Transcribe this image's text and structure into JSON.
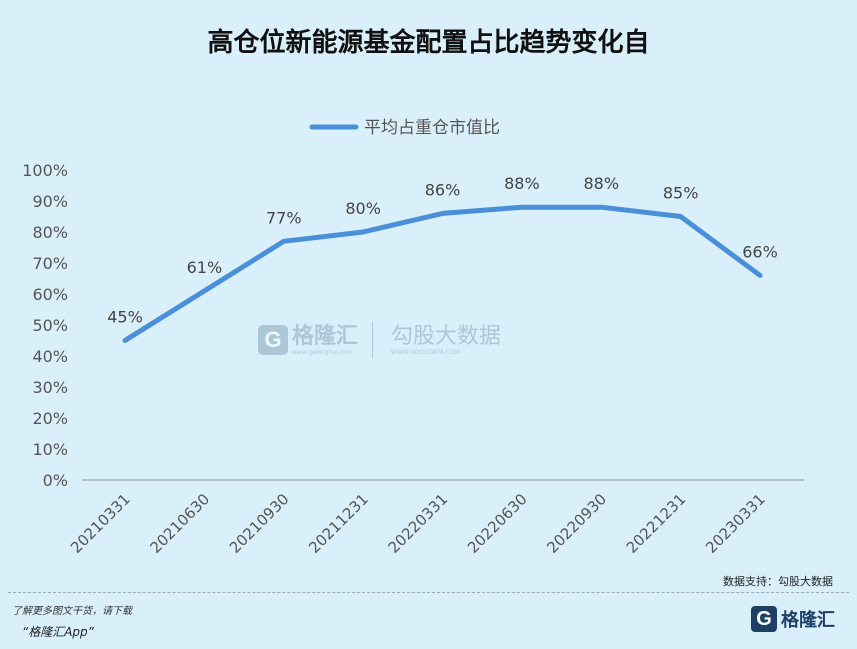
{
  "chart_data": {
    "type": "line",
    "title": "高仓位新能源基金配置占比趋势变化自",
    "categories": [
      "20210331",
      "20210630",
      "20210930",
      "20211231",
      "20220331",
      "20220630",
      "20220930",
      "20221231",
      "20230331"
    ],
    "series": [
      {
        "name": "平均占重仓市值比",
        "values": [
          45,
          61,
          77,
          80,
          86,
          88,
          88,
          85,
          66
        ],
        "color": "#4a90d9"
      }
    ],
    "data_labels": [
      "45%",
      "61%",
      "77%",
      "80%",
      "86%",
      "88%",
      "88%",
      "85%",
      "66%"
    ],
    "y_ticks": [
      "0%",
      "10%",
      "20%",
      "30%",
      "40%",
      "50%",
      "60%",
      "70%",
      "80%",
      "90%",
      "100%"
    ],
    "ylim": [
      0,
      100
    ],
    "xlabel": "",
    "ylabel": "",
    "grid": false,
    "legend_position": "top-center"
  },
  "source_note": "数据支持：勾股大数据",
  "footer": {
    "promo_line1": "了解更多图文干货，请下载",
    "promo_line2": "“格隆汇App”",
    "logo_letter": "G",
    "logo_text": "格隆汇"
  },
  "watermark": {
    "letter": "G",
    "name": "格隆汇",
    "url": "www.gelonghui.com",
    "name2": "勾股大数据",
    "url2": "WWW.GOGUDATA.COM"
  },
  "colors": {
    "background": "#d9f0fb",
    "line": "#4a90d9",
    "axis": "#8c8c8c"
  }
}
